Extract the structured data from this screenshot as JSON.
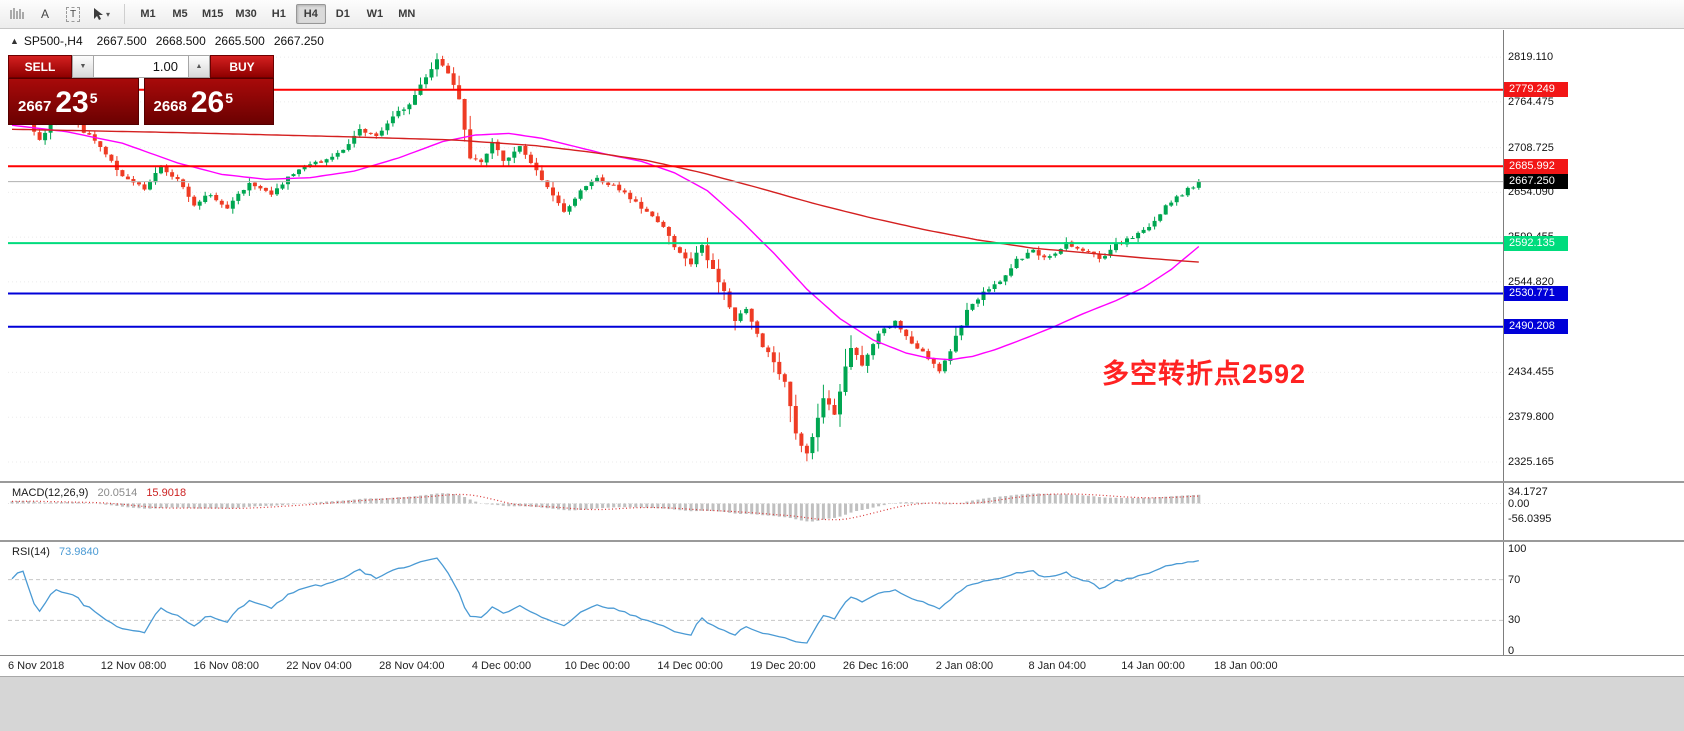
{
  "toolbar": {
    "tools": [
      {
        "name": "hatch-pattern",
        "glyph": ""
      },
      {
        "name": "text-tool",
        "glyph": "A"
      },
      {
        "name": "text-label-tool",
        "glyph": "T"
      },
      {
        "name": "cursor-tool",
        "glyph": ""
      }
    ],
    "dropdown_caret": "▾",
    "timeframes": [
      "M1",
      "M5",
      "M15",
      "M30",
      "H1",
      "H4",
      "D1",
      "W1",
      "MN"
    ],
    "active_timeframe": "H4"
  },
  "chart_header": {
    "symbol_marker": "▲",
    "symbol": "SP500-,H4",
    "open": "2667.500",
    "high": "2668.500",
    "low": "2665.500",
    "close": "2667.250"
  },
  "trade_panel": {
    "sell_label": "SELL",
    "buy_label": "BUY",
    "volume": "1.00",
    "spin_down_glyph": "▼",
    "spin_up_glyph": "▲",
    "bid": {
      "prefix": "2667",
      "big": "23",
      "sup": "5"
    },
    "ask": {
      "prefix": "2668",
      "big": "26",
      "sup": "5"
    }
  },
  "annotation": {
    "text": "多空转折点2592",
    "color": "#ff2222"
  },
  "indicators": {
    "macd": {
      "name": "MACD(12,26,9)",
      "value_main": "20.0514",
      "value_signal": "15.9018",
      "axis": [
        "34.1727",
        "0.00",
        "-56.0395"
      ]
    },
    "rsi": {
      "name": "RSI(14)",
      "value": "73.9840",
      "axis": [
        "100",
        "70",
        "30",
        "0"
      ],
      "levels": [
        70,
        30
      ]
    }
  },
  "price_axis": {
    "ticks": [
      {
        "v": 2819.11,
        "label": "2819.110"
      },
      {
        "v": 2764.475,
        "label": "2764.475"
      },
      {
        "v": 2708.725,
        "label": "2708.725"
      },
      {
        "v": 2654.09,
        "label": "2654.090"
      },
      {
        "v": 2599.455,
        "label": "2599.455"
      },
      {
        "v": 2544.82,
        "label": "2544.820"
      },
      {
        "v": 2434.455,
        "label": "2434.455"
      },
      {
        "v": 2379.8,
        "label": "2379.800"
      },
      {
        "v": 2325.165,
        "label": "2325.165"
      }
    ]
  },
  "levels": [
    {
      "v": 2779.249,
      "label": "2779.249",
      "color": "#ff0000",
      "label_bg": "#f21616"
    },
    {
      "v": 2685.992,
      "label": "2685.992",
      "color": "#ff0000",
      "label_bg": "#f21616"
    },
    {
      "v": 2592.135,
      "label": "2592.135",
      "color": "#00dc7d",
      "label_bg": "#00dc7d"
    },
    {
      "v": 2530.771,
      "label": "2530.771",
      "color": "#0000d8",
      "label_bg": "#0000d8"
    },
    {
      "v": 2490.208,
      "label": "2490.208",
      "color": "#0000d8",
      "label_bg": "#0000d8"
    }
  ],
  "current_price": {
    "v": 2667.25,
    "label": "2667.250",
    "line_color": "#b0b0b0",
    "label_bg": "#000000"
  },
  "time_axis": [
    "6 Nov 2018",
    "12 Nov 08:00",
    "16 Nov 08:00",
    "22 Nov 04:00",
    "28 Nov 04:00",
    "4 Dec 00:00",
    "10 Dec 00:00",
    "14 Dec 00:00",
    "19 Dec 20:00",
    "26 Dec 16:00",
    "2 Jan 08:00",
    "8 Jan 04:00",
    "14 Jan 00:00",
    "18 Jan 00:00"
  ],
  "chart_data": {
    "type": "candlestick",
    "symbol": "SP500-",
    "timeframe": "H4",
    "ylim": [
      2302.0,
      2825.3
    ],
    "bars": 216,
    "colors": {
      "up": "#00a651",
      "down": "#ee3b24",
      "ma_fast": "#ff00ff",
      "ma_slow": "#d42020"
    },
    "close_path": [
      [
        0,
        2742
      ],
      [
        2,
        2752
      ],
      [
        5,
        2718
      ],
      [
        8,
        2748
      ],
      [
        12,
        2735
      ],
      [
        16,
        2710
      ],
      [
        20,
        2672
      ],
      [
        24,
        2660
      ],
      [
        27,
        2686
      ],
      [
        30,
        2668
      ],
      [
        33,
        2640
      ],
      [
        36,
        2652
      ],
      [
        39,
        2636
      ],
      [
        43,
        2664
      ],
      [
        47,
        2653
      ],
      [
        52,
        2684
      ],
      [
        56,
        2692
      ],
      [
        60,
        2706
      ],
      [
        63,
        2730
      ],
      [
        66,
        2722
      ],
      [
        69,
        2748
      ],
      [
        72,
        2760
      ],
      [
        75,
        2796
      ],
      [
        77,
        2815
      ],
      [
        79,
        2800
      ],
      [
        81,
        2770
      ],
      [
        83,
        2695
      ],
      [
        85,
        2690
      ],
      [
        87,
        2715
      ],
      [
        89,
        2692
      ],
      [
        92,
        2712
      ],
      [
        95,
        2680
      ],
      [
        98,
        2650
      ],
      [
        100,
        2628
      ],
      [
        103,
        2655
      ],
      [
        106,
        2672
      ],
      [
        109,
        2661
      ],
      [
        112,
        2648
      ],
      [
        115,
        2630
      ],
      [
        118,
        2612
      ],
      [
        121,
        2580
      ],
      [
        123,
        2566
      ],
      [
        125,
        2590
      ],
      [
        128,
        2545
      ],
      [
        131,
        2500
      ],
      [
        133,
        2512
      ],
      [
        136,
        2468
      ],
      [
        138,
        2445
      ],
      [
        140,
        2420
      ],
      [
        142,
        2360
      ],
      [
        144,
        2335
      ],
      [
        145,
        2352
      ],
      [
        147,
        2405
      ],
      [
        149,
        2385
      ],
      [
        152,
        2465
      ],
      [
        154,
        2442
      ],
      [
        157,
        2480
      ],
      [
        160,
        2498
      ],
      [
        163,
        2470
      ],
      [
        166,
        2452
      ],
      [
        168,
        2438
      ],
      [
        170,
        2460
      ],
      [
        173,
        2510
      ],
      [
        176,
        2532
      ],
      [
        179,
        2545
      ],
      [
        182,
        2572
      ],
      [
        185,
        2582
      ],
      [
        188,
        2574
      ],
      [
        191,
        2592
      ],
      [
        194,
        2585
      ],
      [
        197,
        2572
      ],
      [
        200,
        2590
      ],
      [
        203,
        2600
      ],
      [
        206,
        2612
      ],
      [
        209,
        2636
      ],
      [
        212,
        2652
      ],
      [
        215,
        2667.25
      ]
    ],
    "ma_fast_path": [
      [
        0,
        2736
      ],
      [
        10,
        2728
      ],
      [
        20,
        2714
      ],
      [
        30,
        2690
      ],
      [
        38,
        2676
      ],
      [
        46,
        2670
      ],
      [
        54,
        2672
      ],
      [
        62,
        2680
      ],
      [
        70,
        2696
      ],
      [
        78,
        2716
      ],
      [
        84,
        2724
      ],
      [
        90,
        2726
      ],
      [
        96,
        2720
      ],
      [
        102,
        2710
      ],
      [
        108,
        2700
      ],
      [
        114,
        2692
      ],
      [
        120,
        2678
      ],
      [
        126,
        2656
      ],
      [
        132,
        2620
      ],
      [
        138,
        2580
      ],
      [
        144,
        2536
      ],
      [
        150,
        2500
      ],
      [
        156,
        2474
      ],
      [
        162,
        2458
      ],
      [
        166,
        2452
      ],
      [
        170,
        2450
      ],
      [
        174,
        2454
      ],
      [
        178,
        2462
      ],
      [
        182,
        2472
      ],
      [
        188,
        2488
      ],
      [
        194,
        2506
      ],
      [
        200,
        2522
      ],
      [
        205,
        2538
      ],
      [
        210,
        2560
      ],
      [
        215,
        2588
      ]
    ],
    "ma_slow_path": [
      [
        0,
        2731
      ],
      [
        30,
        2727
      ],
      [
        60,
        2722
      ],
      [
        80,
        2718
      ],
      [
        95,
        2711
      ],
      [
        105,
        2703
      ],
      [
        115,
        2693
      ],
      [
        125,
        2678
      ],
      [
        135,
        2660
      ],
      [
        145,
        2641
      ],
      [
        155,
        2624
      ],
      [
        165,
        2609
      ],
      [
        175,
        2596
      ],
      [
        185,
        2586
      ],
      [
        195,
        2580
      ],
      [
        205,
        2574
      ],
      [
        215,
        2569
      ]
    ]
  }
}
